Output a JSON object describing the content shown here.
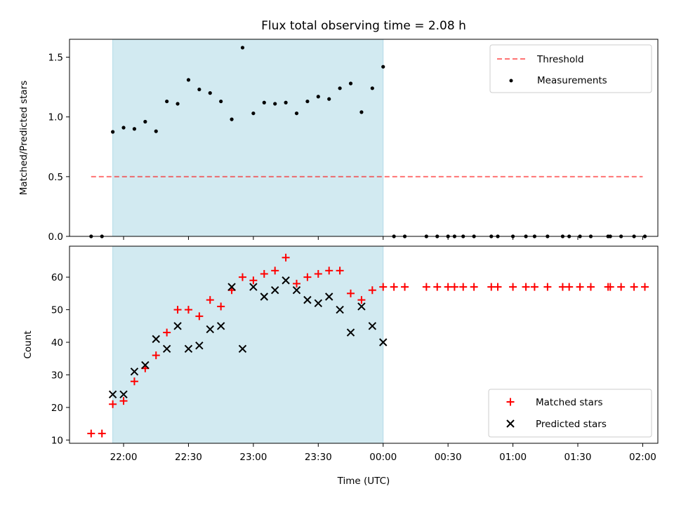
{
  "colors": {
    "band": "#add8e6",
    "threshold": "#ff0000",
    "measurement": "#000000",
    "matched": "#ff0000",
    "predicted": "#000000"
  },
  "chart_data": [
    {
      "type": "scatter",
      "title": "Flux total observing time = 2.08 h",
      "xlabel": "",
      "ylabel": "Matched/Predicted stars",
      "x_range": [
        "21:35",
        "02:07"
      ],
      "ylim": [
        0,
        1.65
      ],
      "yticks": [
        "0.0",
        "0.5",
        "1.0",
        "1.5"
      ],
      "grid": false,
      "legend_position": "top-right",
      "highlight_span": [
        "21:55",
        "00:00"
      ],
      "threshold": {
        "name": "Threshold",
        "style": "dashed",
        "value": 0.5,
        "x_range": [
          "21:45",
          "02:00"
        ]
      },
      "series": [
        {
          "name": "Measurements",
          "points": [
            [
              "21:45",
              0
            ],
            [
              "21:50",
              0
            ],
            [
              "21:55",
              0.875
            ],
            [
              "22:00",
              0.91
            ],
            [
              "22:05",
              0.9
            ],
            [
              "22:10",
              0.96
            ],
            [
              "22:15",
              0.88
            ],
            [
              "22:20",
              1.13
            ],
            [
              "22:25",
              1.11
            ],
            [
              "22:30",
              1.31
            ],
            [
              "22:35",
              1.23
            ],
            [
              "22:40",
              1.2
            ],
            [
              "22:45",
              1.13
            ],
            [
              "22:50",
              0.98
            ],
            [
              "22:55",
              1.58
            ],
            [
              "23:00",
              1.03
            ],
            [
              "23:05",
              1.12
            ],
            [
              "23:10",
              1.11
            ],
            [
              "23:15",
              1.12
            ],
            [
              "23:20",
              1.03
            ],
            [
              "23:25",
              1.13
            ],
            [
              "23:30",
              1.17
            ],
            [
              "23:35",
              1.15
            ],
            [
              "23:40",
              1.24
            ],
            [
              "23:45",
              1.28
            ],
            [
              "23:50",
              1.04
            ],
            [
              "23:55",
              1.24
            ],
            [
              "00:00",
              1.42
            ],
            [
              "00:05",
              0
            ],
            [
              "00:10",
              0
            ],
            [
              "00:20",
              0
            ],
            [
              "00:25",
              0
            ],
            [
              "00:30",
              0
            ],
            [
              "00:33",
              0
            ],
            [
              "00:37",
              0
            ],
            [
              "00:42",
              0
            ],
            [
              "00:50",
              0
            ],
            [
              "00:53",
              0
            ],
            [
              "01:00",
              0
            ],
            [
              "01:06",
              0
            ],
            [
              "01:10",
              0
            ],
            [
              "01:16",
              0
            ],
            [
              "01:23",
              0
            ],
            [
              "01:26",
              0
            ],
            [
              "01:31",
              0
            ],
            [
              "01:36",
              0
            ],
            [
              "01:44",
              0
            ],
            [
              "01:45",
              0
            ],
            [
              "01:50",
              0
            ],
            [
              "01:56",
              0
            ],
            [
              "02:01",
              0
            ]
          ]
        }
      ]
    },
    {
      "type": "scatter",
      "title": "",
      "xlabel": "Time (UTC)",
      "ylabel": "Count",
      "x_range": [
        "21:35",
        "02:07"
      ],
      "xticks": [
        "22:00",
        "22:30",
        "23:00",
        "23:30",
        "00:00",
        "00:30",
        "01:00",
        "01:30",
        "02:00"
      ],
      "ylim": [
        9,
        69.5
      ],
      "yticks": [
        "10",
        "20",
        "30",
        "40",
        "50",
        "60"
      ],
      "grid": false,
      "legend_position": "bottom-right",
      "highlight_span": [
        "21:55",
        "00:00"
      ],
      "series": [
        {
          "name": "Matched stars",
          "marker": "+",
          "points": [
            [
              "21:45",
              12
            ],
            [
              "21:50",
              12
            ],
            [
              "21:55",
              21
            ],
            [
              "22:00",
              22
            ],
            [
              "22:05",
              28
            ],
            [
              "22:10",
              32
            ],
            [
              "22:15",
              36
            ],
            [
              "22:20",
              43
            ],
            [
              "22:25",
              50
            ],
            [
              "22:30",
              50
            ],
            [
              "22:35",
              48
            ],
            [
              "22:40",
              53
            ],
            [
              "22:45",
              51
            ],
            [
              "22:50",
              56
            ],
            [
              "22:55",
              60
            ],
            [
              "23:00",
              59
            ],
            [
              "23:05",
              61
            ],
            [
              "23:10",
              62
            ],
            [
              "23:15",
              66
            ],
            [
              "23:20",
              58
            ],
            [
              "23:25",
              60
            ],
            [
              "23:30",
              61
            ],
            [
              "23:35",
              62
            ],
            [
              "23:40",
              62
            ],
            [
              "23:45",
              55
            ],
            [
              "23:50",
              53
            ],
            [
              "23:55",
              56
            ],
            [
              "00:00",
              57
            ],
            [
              "00:05",
              57
            ],
            [
              "00:10",
              57
            ],
            [
              "00:20",
              57
            ],
            [
              "00:25",
              57
            ],
            [
              "00:30",
              57
            ],
            [
              "00:33",
              57
            ],
            [
              "00:37",
              57
            ],
            [
              "00:42",
              57
            ],
            [
              "00:50",
              57
            ],
            [
              "00:53",
              57
            ],
            [
              "01:00",
              57
            ],
            [
              "01:06",
              57
            ],
            [
              "01:10",
              57
            ],
            [
              "01:16",
              57
            ],
            [
              "01:23",
              57
            ],
            [
              "01:26",
              57
            ],
            [
              "01:31",
              57
            ],
            [
              "01:36",
              57
            ],
            [
              "01:44",
              57
            ],
            [
              "01:45",
              57
            ],
            [
              "01:50",
              57
            ],
            [
              "01:56",
              57
            ],
            [
              "02:01",
              57
            ]
          ]
        },
        {
          "name": "Predicted stars",
          "marker": "x",
          "points": [
            [
              "21:55",
              24
            ],
            [
              "22:00",
              24
            ],
            [
              "22:05",
              31
            ],
            [
              "22:10",
              33
            ],
            [
              "22:15",
              41
            ],
            [
              "22:20",
              38
            ],
            [
              "22:25",
              45
            ],
            [
              "22:30",
              38
            ],
            [
              "22:35",
              39
            ],
            [
              "22:40",
              44
            ],
            [
              "22:45",
              45
            ],
            [
              "22:50",
              57
            ],
            [
              "22:55",
              38
            ],
            [
              "23:00",
              57
            ],
            [
              "23:05",
              54
            ],
            [
              "23:10",
              56
            ],
            [
              "23:15",
              59
            ],
            [
              "23:20",
              56
            ],
            [
              "23:25",
              53
            ],
            [
              "23:30",
              52
            ],
            [
              "23:35",
              54
            ],
            [
              "23:40",
              50
            ],
            [
              "23:45",
              43
            ],
            [
              "23:50",
              51
            ],
            [
              "23:55",
              45
            ],
            [
              "00:00",
              40
            ]
          ]
        }
      ]
    }
  ]
}
